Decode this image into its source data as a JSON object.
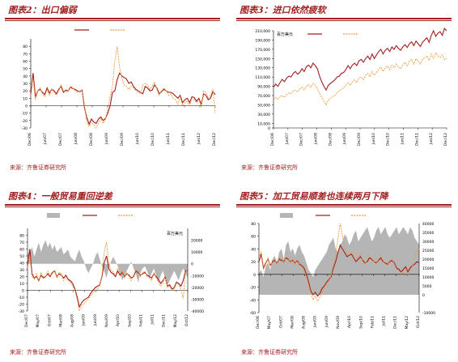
{
  "source_label": "来源：齐鲁证券研究所",
  "chart_data": [
    {
      "id": "fig2",
      "type": "line",
      "title": "图表2：出口偏弱",
      "x_ticks": [
        "Dec/06",
        "Jun/07",
        "Dec/07",
        "Jun/08",
        "Dec/08",
        "Jun/09",
        "Dec/09",
        "Jun/10",
        "Dec/10",
        "Jun/11",
        "Dec/11",
        "Jun/12",
        "Dec/12"
      ],
      "ylim": [
        -30,
        90
      ],
      "y_ticks": [
        -30,
        -20,
        -10,
        0,
        10,
        20,
        30,
        40,
        50,
        60,
        70,
        80
      ],
      "legend_placement": "top-center",
      "series": [
        {
          "style": "solid",
          "color": "#a01e1e",
          "values": [
            16,
            44,
            12,
            20,
            22,
            18,
            15,
            24,
            17,
            22,
            20,
            16,
            22,
            26,
            18,
            21,
            20,
            25,
            23,
            22,
            20,
            19,
            21,
            -3,
            -16,
            -25,
            -18,
            -22,
            -24,
            -18,
            -15,
            -20,
            -17,
            -10,
            0,
            18,
            20,
            35,
            44,
            40,
            38,
            36,
            30,
            32,
            26,
            22,
            20,
            18,
            16,
            26,
            24,
            20,
            21,
            28,
            24,
            16,
            19,
            22,
            20,
            18,
            18,
            16,
            13,
            10,
            14,
            4,
            8,
            10,
            4,
            12,
            11,
            6,
            10,
            2,
            16,
            14,
            8,
            10,
            19,
            15
          ]
        },
        {
          "style": "dashed",
          "color": "#ee9a3a",
          "values": [
            26,
            36,
            8,
            20,
            24,
            16,
            12,
            22,
            14,
            22,
            18,
            14,
            20,
            28,
            20,
            18,
            20,
            26,
            24,
            20,
            18,
            20,
            20,
            0,
            -22,
            -28,
            -22,
            -26,
            -30,
            -24,
            -17,
            -24,
            -18,
            -4,
            12,
            26,
            60,
            80,
            52,
            38,
            28,
            26,
            22,
            26,
            24,
            20,
            18,
            16,
            28,
            30,
            28,
            22,
            26,
            32,
            22,
            14,
            20,
            24,
            20,
            14,
            16,
            10,
            8,
            2,
            12,
            0,
            4,
            6,
            0,
            10,
            8,
            4,
            8,
            -2,
            20,
            18,
            10,
            14,
            22,
            -10
          ]
        }
      ]
    },
    {
      "id": "fig3",
      "type": "line",
      "title": "图表3：进口依然疲软",
      "legend_label": "百万美元",
      "x_ticks": [
        "Dec/06",
        "Jun/07",
        "Dec/07",
        "Jun/08",
        "Dec/08",
        "Jun/09",
        "Dec/09",
        "Jun/10",
        "Dec/10",
        "Jun/11",
        "Dec/11",
        "Jun/12",
        "Dec/12"
      ],
      "ylim": [
        0,
        210000
      ],
      "y_ticks": [
        0,
        10000,
        30000,
        50000,
        70000,
        90000,
        110000,
        130000,
        150000,
        170000,
        190000,
        210000
      ],
      "y_tick_labels": [
        "0",
        "10,000",
        "30,000",
        "50,000",
        "70,000",
        "90,000",
        "110,000",
        "130,000",
        "150,000",
        "170,000",
        "190,000",
        "210,000"
      ],
      "legend_placement": "top-left",
      "series": [
        {
          "style": "solid",
          "color": "#a01e1e",
          "values": [
            88000,
            95000,
            90000,
            98000,
            105000,
            100000,
            108000,
            112000,
            110000,
            118000,
            122000,
            116000,
            120000,
            128000,
            122000,
            132000,
            136000,
            130000,
            140000,
            135000,
            128000,
            112000,
            100000,
            90000,
            82000,
            92000,
            96000,
            100000,
            104000,
            110000,
            112000,
            118000,
            120000,
            126000,
            135000,
            128000,
            136000,
            140000,
            135000,
            145000,
            148000,
            142000,
            150000,
            155000,
            148000,
            160000,
            150000,
            158000,
            165000,
            170000,
            160000,
            168000,
            172000,
            165000,
            175000,
            170000,
            178000,
            172000,
            168000,
            175000,
            180000,
            174000,
            182000,
            186000,
            178000,
            188000,
            182000,
            176000,
            185000,
            190000,
            195000,
            185000,
            200000,
            210000,
            198000,
            205000,
            208000,
            200000,
            215000,
            210000
          ]
        },
        {
          "style": "dashed",
          "color": "#ee9a3a",
          "values": [
            60000,
            66000,
            62000,
            68000,
            70000,
            66000,
            72000,
            76000,
            74000,
            80000,
            82000,
            78000,
            84000,
            88000,
            82000,
            90000,
            94000,
            88000,
            96000,
            92000,
            86000,
            74000,
            66000,
            58000,
            50000,
            60000,
            64000,
            68000,
            70000,
            76000,
            80000,
            84000,
            86000,
            92000,
            98000,
            92000,
            100000,
            104000,
            98000,
            108000,
            110000,
            104000,
            114000,
            118000,
            110000,
            122000,
            114000,
            120000,
            126000,
            132000,
            122000,
            130000,
            134000,
            126000,
            136000,
            130000,
            138000,
            132000,
            128000,
            136000,
            142000,
            134000,
            144000,
            148000,
            138000,
            150000,
            144000,
            138000,
            148000,
            152000,
            156000,
            146000,
            160000,
            150000,
            162000,
            156000,
            152000,
            158000,
            148000,
            150000
          ]
        }
      ]
    },
    {
      "id": "fig4",
      "type": "line",
      "title": "图表4：一般贸易重回逆差",
      "legend_label": "百万美元",
      "x_ticks": [
        "Dec/07",
        "May/07",
        "Oct/07",
        "Mar/08",
        "Aug/08",
        "Jan/09",
        "Jun/09",
        "Nov/09",
        "Apr/10",
        "Sep/10",
        "Feb/11",
        "Jul/11",
        "Dec/11",
        "May/12",
        "Oct/12"
      ],
      "ylim": [
        -30,
        90
      ],
      "y_ticks": [
        -30,
        -20,
        -10,
        0,
        10,
        20,
        30,
        40,
        50,
        60,
        70,
        80
      ],
      "y2lim": [
        -40000,
        30000
      ],
      "y2_ticks": [
        -40000,
        -30000,
        -20000,
        -10000,
        0,
        10000,
        20000
      ],
      "legend_placement": "top-center",
      "series": [
        {
          "style": "area",
          "color": "#b5b5b5",
          "values": [
            8000,
            10000,
            14000,
            6000,
            12000,
            18000,
            10000,
            16000,
            20000,
            14000,
            18000,
            12000,
            16000,
            10000,
            12000,
            14000,
            8000,
            10000,
            12000,
            6000,
            4000,
            2000,
            8000,
            12000,
            6000,
            2000,
            -4000,
            -8000,
            -4000,
            0,
            6000,
            10000,
            4000,
            -2000,
            -6000,
            -12000,
            -4000,
            2000,
            6000,
            2000,
            -2000,
            -8000,
            -14000,
            -10000,
            -6000,
            -2000,
            2000,
            -4000,
            -8000,
            -16000,
            -8000,
            -4000,
            -2000,
            -6000,
            -12000,
            -8000,
            -4000,
            -10000,
            -16000,
            -10000,
            -6000,
            -12000,
            -18000,
            -14000,
            -10000,
            -6000,
            -10000,
            -14000,
            -8000,
            -4000,
            -8000,
            -12000
          ]
        },
        {
          "style": "solid",
          "color": "#a01e1e",
          "values": [
            36,
            60,
            24,
            18,
            20,
            14,
            22,
            18,
            20,
            24,
            20,
            26,
            28,
            20,
            24,
            22,
            18,
            22,
            16,
            14,
            10,
            2,
            -10,
            -24,
            -18,
            -14,
            -12,
            -10,
            -4,
            0,
            4,
            6,
            8,
            20,
            40,
            50,
            32,
            26,
            24,
            20,
            28,
            22,
            26,
            20,
            24,
            22,
            18,
            20,
            28,
            26,
            22,
            24,
            26,
            22,
            20,
            18,
            24,
            20,
            16,
            10,
            14,
            20,
            6,
            8,
            2,
            4,
            12,
            10,
            6,
            14,
            28,
            30
          ]
        },
        {
          "style": "dashed",
          "color": "#ee9a3a",
          "values": [
            44,
            50,
            20,
            16,
            24,
            12,
            26,
            20,
            18,
            28,
            22,
            24,
            30,
            18,
            26,
            24,
            14,
            20,
            14,
            12,
            6,
            0,
            -14,
            -30,
            -22,
            -20,
            -16,
            -12,
            -8,
            -4,
            0,
            2,
            6,
            22,
            56,
            70,
            40,
            30,
            26,
            22,
            32,
            24,
            28,
            18,
            26,
            20,
            14,
            22,
            30,
            28,
            20,
            26,
            28,
            20,
            18,
            14,
            26,
            18,
            12,
            6,
            10,
            22,
            4,
            6,
            0,
            2,
            10,
            8,
            2,
            -12,
            26,
            32
          ]
        }
      ]
    },
    {
      "id": "fig5",
      "type": "line",
      "title": "图表5：加工贸易顺差也连续两月下降",
      "x_ticks": [
        "Dec/06",
        "May/07",
        "Oct/07",
        "Mar/08",
        "Aug/08",
        "Jan/09",
        "Jun/09",
        "Nov/09",
        "Apr/10",
        "Sep/10",
        "Feb/11",
        "Jul/11",
        "Dec/11",
        "May/12",
        "Oct/12"
      ],
      "ylim": [
        -60,
        80
      ],
      "y_ticks": [
        -60,
        -40,
        -20,
        0,
        20,
        40,
        60,
        80
      ],
      "y2lim": [
        -10000,
        40000
      ],
      "y2_ticks": [
        -10000,
        0,
        5000,
        10000,
        15000,
        20000,
        25000,
        30000,
        35000,
        40000
      ],
      "legend_placement": "top-center",
      "series": [
        {
          "style": "area",
          "color": "#b5b5b5",
          "values": [
            12000,
            14000,
            10000,
            16000,
            18000,
            14000,
            20000,
            22000,
            18000,
            24000,
            26000,
            20000,
            28000,
            30000,
            24000,
            26000,
            22000,
            26000,
            28000,
            24000,
            22000,
            18000,
            14000,
            12000,
            10000,
            14000,
            16000,
            18000,
            20000,
            22000,
            24000,
            28000,
            30000,
            32000,
            26000,
            24000,
            28000,
            30000,
            34000,
            32000,
            28000,
            30000,
            34000,
            36000,
            30000,
            32000,
            34000,
            36000,
            38000,
            34000,
            30000,
            32000,
            36000,
            38000,
            34000,
            36000,
            38000,
            34000,
            32000,
            34000,
            36000,
            38000,
            34000,
            36000,
            38000,
            36000,
            34000,
            38000,
            36000,
            32000,
            30000,
            28000
          ]
        },
        {
          "style": "solid",
          "color": "#a01e1e",
          "values": [
            20,
            32,
            10,
            18,
            24,
            14,
            20,
            22,
            18,
            24,
            22,
            20,
            26,
            24,
            20,
            22,
            18,
            22,
            16,
            14,
            10,
            0,
            -12,
            -26,
            -32,
            -28,
            -34,
            -30,
            -22,
            -18,
            -12,
            -8,
            -4,
            10,
            20,
            34,
            46,
            40,
            34,
            28,
            30,
            32,
            26,
            20,
            24,
            28,
            22,
            18,
            20,
            26,
            24,
            20,
            18,
            22,
            26,
            20,
            18,
            16,
            20,
            22,
            18,
            10,
            8,
            4,
            8,
            12,
            4,
            10,
            14,
            16,
            20,
            18
          ]
        },
        {
          "style": "dashed",
          "color": "#ee9a3a",
          "values": [
            26,
            36,
            8,
            16,
            26,
            12,
            22,
            24,
            16,
            26,
            24,
            18,
            28,
            26,
            18,
            24,
            16,
            24,
            14,
            12,
            6,
            -4,
            -16,
            -30,
            -40,
            -34,
            -42,
            -36,
            -26,
            -20,
            -14,
            -10,
            -2,
            16,
            30,
            56,
            80,
            62,
            40,
            30,
            34,
            36,
            28,
            22,
            28,
            32,
            20,
            16,
            24,
            30,
            26,
            20,
            16,
            24,
            30,
            22,
            16,
            14,
            22,
            24,
            16,
            8,
            6,
            0,
            6,
            10,
            0,
            6,
            12,
            30,
            36,
            40
          ]
        }
      ]
    }
  ]
}
